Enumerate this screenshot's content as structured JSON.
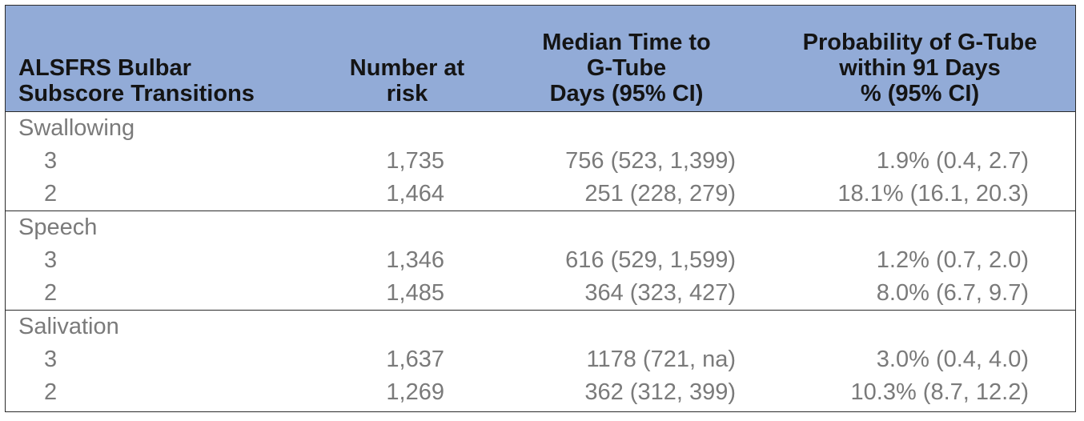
{
  "header": {
    "col1_line1": "ALSFRS Bulbar",
    "col1_line2": "Subscore Transitions",
    "col2_line1": "Number at",
    "col2_line2": "risk",
    "col3_line1": "Median Time to",
    "col3_line2": "G-Tube",
    "col3_line3": "Days (95% CI)",
    "col4_line1": "Probability of G-Tube",
    "col4_line2": "within 91 Days",
    "col4_line3": "% (95% CI)"
  },
  "groups": [
    {
      "label": "Swallowing",
      "rows": [
        {
          "level": "3",
          "at_risk": "1,735",
          "median": "756 (523, 1,399)",
          "prob": "1.9% (0.4, 2.7)"
        },
        {
          "level": "2",
          "at_risk": "1,464",
          "median": "251 (228, 279)",
          "prob": "18.1% (16.1, 20.3)"
        }
      ]
    },
    {
      "label": "Speech",
      "rows": [
        {
          "level": "3",
          "at_risk": "1,346",
          "median": "616 (529, 1,599)",
          "prob": "1.2% (0.7, 2.0)"
        },
        {
          "level": "2",
          "at_risk": "1,485",
          "median": "364 (323, 427)",
          "prob": "8.0% (6.7, 9.7)"
        }
      ]
    },
    {
      "label": "Salivation",
      "rows": [
        {
          "level": "3",
          "at_risk": "1,637",
          "median": "1178 (721, na)",
          "prob": "3.0% (0.4, 4.0)"
        },
        {
          "level": "2",
          "at_risk": "1,269",
          "median": "362 (312, 399)",
          "prob": "10.3% (8.7, 12.2)"
        }
      ]
    }
  ],
  "colors": {
    "header_bg": "#92abd7",
    "body_text": "#7a7a7a",
    "header_text": "#141414",
    "rule": "#2b2b2b"
  }
}
